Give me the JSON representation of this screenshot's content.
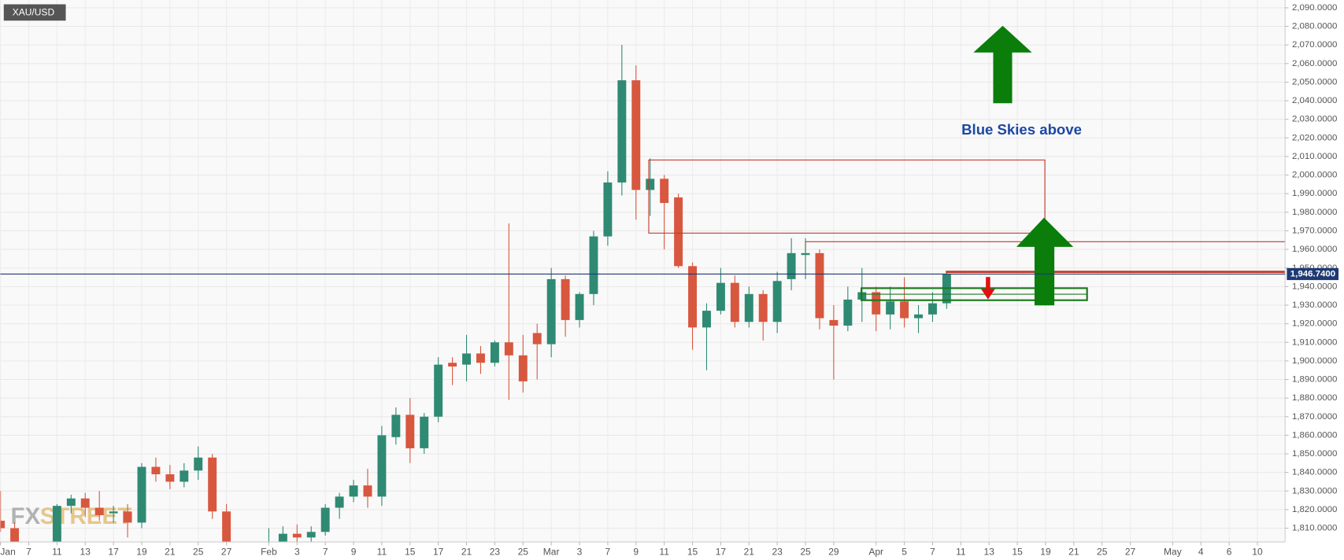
{
  "chart_data": {
    "type": "candlestick",
    "symbol": "XAU/USD",
    "watermark": [
      "FX",
      "STREET"
    ],
    "annotation": "Blue Skies above",
    "categories": [
      null,
      null,
      "Jan",
      null,
      "7",
      null,
      "11",
      null,
      "13",
      null,
      "17",
      null,
      "19",
      null,
      "21",
      null,
      "25",
      null,
      "27",
      null,
      null,
      "Feb",
      null,
      "3",
      null,
      "7",
      null,
      "9",
      null,
      "11",
      null,
      "15",
      null,
      "17",
      null,
      "21",
      null,
      "23",
      null,
      "25",
      null,
      "Mar",
      null,
      "3",
      null,
      "7",
      null,
      "9",
      null,
      "11",
      null,
      "15",
      null,
      "17",
      null,
      "21",
      null,
      "23",
      null,
      "25",
      null,
      "29",
      null,
      null,
      "Apr",
      null,
      "5",
      null,
      "7",
      null,
      "11",
      null,
      "13",
      null,
      "15",
      null,
      "19",
      null,
      "21",
      null,
      "25",
      null,
      "27",
      null,
      null,
      "May",
      null,
      "4",
      null,
      "6",
      null,
      "10",
      null,
      null
    ],
    "open": [
      null,
      null,
      1814,
      1810,
      null,
      null,
      1801,
      1822,
      1826,
      1821,
      1818,
      1819,
      1813,
      1843,
      1839,
      1835,
      1841,
      1848,
      1819,
      null,
      null,
      1797,
      1801,
      1807,
      1805,
      1808,
      1821,
      1827,
      1833,
      1827,
      1859,
      1871,
      1853,
      1870,
      1899,
      1898,
      1904,
      1899,
      1910,
      1903,
      1915,
      1909,
      1944,
      1922,
      1936,
      1967,
      1996,
      2051,
      1992,
      1998,
      1988,
      1951,
      1918,
      1927,
      1942,
      1921,
      1936,
      1921,
      1944,
      1957,
      1958,
      1922,
      1919,
      1933,
      1937,
      1925,
      1932,
      1923,
      1925,
      1931,
      null,
      null,
      null,
      null,
      null,
      null,
      null,
      null,
      null,
      null,
      null,
      null,
      null,
      null,
      null,
      null,
      null,
      null,
      null,
      null,
      null,
      null,
      null,
      null
    ],
    "high": [
      null,
      null,
      1830,
      1813,
      null,
      null,
      1823,
      1828,
      1829,
      1830,
      1822,
      1823,
      1845,
      1848,
      1844,
      1845,
      1854,
      1850,
      1823,
      null,
      null,
      1810,
      1811,
      1812,
      1811,
      1823,
      1829,
      1836,
      1842,
      1865,
      1875,
      1880,
      1872,
      1902,
      1902,
      1914,
      1908,
      1911,
      1974,
      1914,
      1920,
      1950,
      1946,
      1937,
      1970,
      2002,
      2070,
      2059,
      2009,
      2000,
      1990,
      1953,
      1931,
      1950,
      1946,
      1940,
      1938,
      1948,
      1966,
      1966,
      1960,
      1930,
      1940,
      1950,
      1940,
      1940,
      1945,
      1930,
      1937,
      1948,
      null,
      null,
      null,
      null,
      null,
      null,
      null,
      null,
      null,
      null,
      null,
      null,
      null,
      null,
      null,
      null,
      null,
      null,
      null,
      null,
      null,
      null,
      null,
      null
    ],
    "low": [
      null,
      null,
      1808,
      1785,
      null,
      null,
      1800,
      1818,
      1816,
      1814,
      1813,
      1805,
      1810,
      1835,
      1831,
      1832,
      1836,
      1815,
      1795,
      null,
      null,
      1792,
      1799,
      1792,
      1791,
      1806,
      1815,
      1824,
      1821,
      1822,
      1855,
      1845,
      1850,
      1867,
      1887,
      1889,
      1893,
      1897,
      1879,
      1883,
      1890,
      1902,
      1913,
      1918,
      1930,
      1962,
      1989,
      1976,
      1978,
      1960,
      1950,
      1906,
      1895,
      1925,
      1918,
      1918,
      1911,
      1915,
      1938,
      1944,
      1917,
      1890,
      1916,
      1921,
      1916,
      1917,
      1918,
      1915,
      1921,
      1928,
      null,
      null,
      null,
      null,
      null,
      null,
      null,
      null,
      null,
      null,
      null,
      null,
      null,
      null,
      null,
      null,
      null,
      null,
      null,
      null,
      null,
      null,
      null,
      null
    ],
    "close": [
      null,
      null,
      1810,
      1791,
      null,
      null,
      1822,
      1826,
      1821,
      1817,
      1819,
      1813,
      1843,
      1839,
      1835,
      1841,
      1848,
      1819,
      1797,
      null,
      null,
      1801,
      1807,
      1805,
      1808,
      1821,
      1827,
      1833,
      1827,
      1860,
      1871,
      1853,
      1870,
      1898,
      1897,
      1904,
      1899,
      1910,
      1903,
      1889,
      1909,
      1944,
      1922,
      1936,
      1967,
      1996,
      2051,
      1992,
      1998,
      1985,
      1951,
      1918,
      1927,
      1942,
      1921,
      1936,
      1921,
      1943,
      1958,
      1958,
      1923,
      1919,
      1933,
      1937,
      1925,
      1932,
      1923,
      1925,
      1931,
      1946.74,
      null,
      null,
      null,
      null,
      null,
      null,
      null,
      null,
      null,
      null,
      null,
      null,
      null,
      null,
      null,
      null,
      null,
      null,
      null,
      null,
      null,
      null,
      null,
      null
    ],
    "up_color": "#2f8a73",
    "down_color": "#d8573f",
    "ylim": [
      1802.6,
      2094.2
    ],
    "yticks": [
      {
        "value": 1810,
        "label": "1,810.0000"
      },
      {
        "value": 1820,
        "label": "1,820.0000"
      },
      {
        "value": 1830,
        "label": "1,830.0000"
      },
      {
        "value": 1840,
        "label": "1,840.0000"
      },
      {
        "value": 1850,
        "label": "1,850.0000"
      },
      {
        "value": 1860,
        "label": "1,860.0000"
      },
      {
        "value": 1870,
        "label": "1,870.0000"
      },
      {
        "value": 1880,
        "label": "1,880.0000"
      },
      {
        "value": 1890,
        "label": "1,890.0000"
      },
      {
        "value": 1900,
        "label": "1,900.0000"
      },
      {
        "value": 1910,
        "label": "1,910.0000"
      },
      {
        "value": 1920,
        "label": "1,920.0000"
      },
      {
        "value": 1930,
        "label": "1,930.0000"
      },
      {
        "value": 1940,
        "label": "1,940.0000"
      },
      {
        "value": 1950,
        "label": "1,950.0000"
      },
      {
        "value": 1960,
        "label": "1,960.0000"
      },
      {
        "value": 1970,
        "label": "1,970.0000"
      },
      {
        "value": 1980,
        "label": "1,980.0000"
      },
      {
        "value": 1990,
        "label": "1,990.0000"
      },
      {
        "value": 2000,
        "label": "2,000.0000"
      },
      {
        "value": 2010,
        "label": "2,010.0000"
      },
      {
        "value": 2020,
        "label": "2,020.0000"
      },
      {
        "value": 2030,
        "label": "2,030.0000"
      },
      {
        "value": 2040,
        "label": "2,040.0000"
      },
      {
        "value": 2050,
        "label": "2,050.0000"
      },
      {
        "value": 2060,
        "label": "2,060.0000"
      },
      {
        "value": 2070,
        "label": "2,070.0000"
      },
      {
        "value": 2080,
        "label": "2,080.0000"
      },
      {
        "value": 2090,
        "label": "2,090.0000"
      }
    ],
    "last_price": {
      "value": 1946.74,
      "label": "1,946.7400"
    },
    "last_price_color": "#1f3a73",
    "grid": true
  }
}
